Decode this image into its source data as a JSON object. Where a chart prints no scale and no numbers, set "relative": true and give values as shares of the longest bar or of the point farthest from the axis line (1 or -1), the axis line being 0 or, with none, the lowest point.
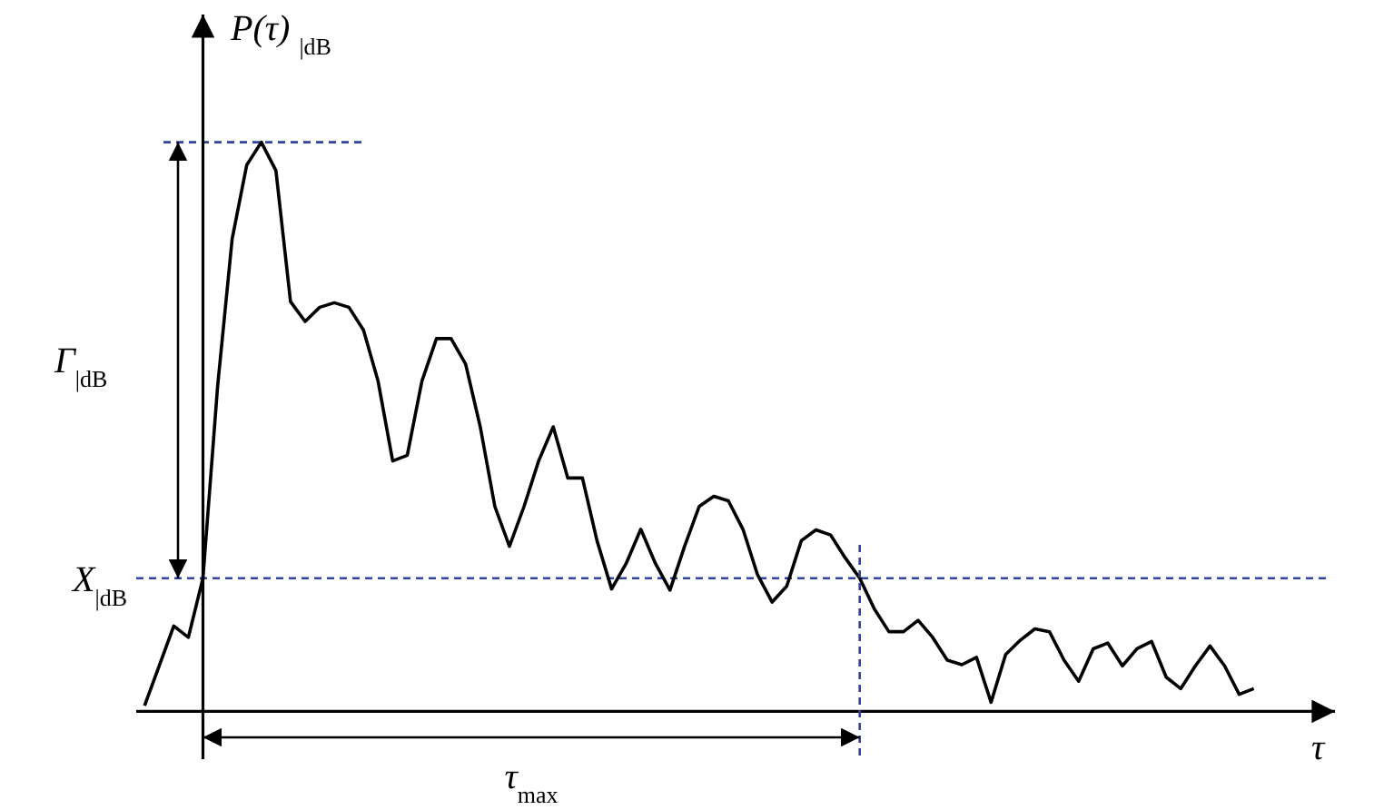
{
  "chart_data": {
    "type": "line",
    "relative": true,
    "ylabel": "P(τ) $_{|dB}$",
    "xlabel": "τ",
    "categories": [
      null,
      null,
      null,
      null,
      null,
      null,
      null,
      null,
      null,
      null,
      null,
      null,
      null,
      null,
      null,
      null,
      null,
      null,
      null,
      null,
      null,
      null,
      null,
      null,
      null,
      null,
      null,
      null,
      null,
      null,
      null,
      null,
      null,
      null,
      null,
      null,
      null,
      null,
      null,
      null,
      null,
      null,
      null,
      null,
      null,
      null,
      null,
      null,
      null,
      null,
      null,
      null,
      null,
      null,
      null,
      null,
      null,
      null,
      null,
      null,
      null,
      null,
      null,
      null,
      null,
      null,
      null,
      null,
      null,
      null,
      null,
      null,
      null,
      null,
      null,
      null,
      null
    ],
    "series": [
      {
        "color": "#000000",
        "values": [
          0.01,
          0.08,
          0.15,
          0.13,
          0.234,
          0.57,
          0.83,
          0.96,
          1,
          0.95,
          0.72,
          0.685,
          0.71,
          0.718,
          0.71,
          0.67,
          0.58,
          0.44,
          0.45,
          0.58,
          0.655,
          0.655,
          0.61,
          0.5,
          0.36,
          0.29,
          0.36,
          0.44,
          0.5,
          0.41,
          0.41,
          0.3,
          0.215,
          0.26,
          0.32,
          0.26,
          0.213,
          0.29,
          0.36,
          0.378,
          0.37,
          0.32,
          0.24,
          0.192,
          0.22,
          0.3,
          0.319,
          0.31,
          0.27,
          0.234,
          0.18,
          0.14,
          0.14,
          0.16,
          0.13,
          0.09,
          0.082,
          0.095,
          0.016,
          0.1,
          0.125,
          0.145,
          0.14,
          0.09,
          0.053,
          0.11,
          0.12,
          0.08,
          0.11,
          0.123,
          0.06,
          0.04,
          0.08,
          0.115,
          0.08,
          0.03,
          0.04
        ]
      }
    ],
    "ref_lines": [
      {
        "axis": "y",
        "value": 0.234,
        "label": "X$_{|dB}$",
        "color": "#2e44a0",
        "line_style": "dashed"
      },
      {
        "axis": "y",
        "value": 1,
        "color": "#2e44a0",
        "line_style": "dashed"
      }
    ],
    "annotations": [
      "Γ$_{|dB}$",
      "τ$_{max}$"
    ]
  }
}
